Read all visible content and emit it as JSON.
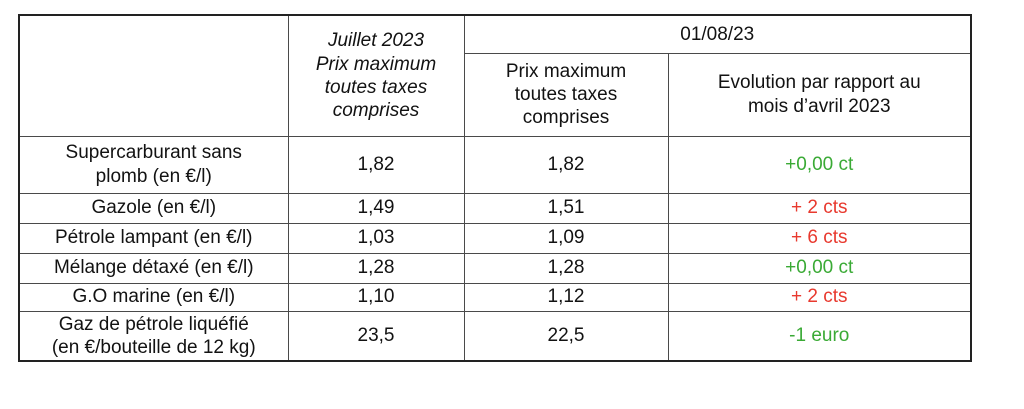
{
  "table": {
    "header": {
      "corner_cell": "",
      "juillet_column": {
        "lines": [
          "Juillet 2023",
          "Prix maximum",
          "toutes taxes",
          "comprises"
        ]
      },
      "aout_group": {
        "title": "01/08/23"
      },
      "price_subcolumn": {
        "lines": [
          "Prix maximum",
          "toutes taxes",
          "comprises"
        ]
      },
      "evolution_subcolumn": {
        "lines": [
          "Evolution par rapport au",
          "mois d’avril 2023"
        ]
      }
    },
    "rows": [
      {
        "label_lines": [
          "Supercarburant sans",
          "plomb (en €/l)"
        ],
        "juillet_price": "1,82",
        "aout_price": "1,82",
        "evolution": "+0,00 ct",
        "evolution_color": "#3aaa35"
      },
      {
        "label_lines": [
          "Gazole (en €/l)"
        ],
        "juillet_price": "1,49",
        "aout_price": "1,51",
        "evolution": "+ 2 cts",
        "evolution_color": "#e8392e"
      },
      {
        "label_lines": [
          "Pétrole lampant (en €/l)"
        ],
        "juillet_price": "1,03",
        "aout_price": "1,09",
        "evolution": "+ 6 cts",
        "evolution_color": "#e8392e"
      },
      {
        "label_lines": [
          "Mélange détaxé (en €/l)"
        ],
        "juillet_price": "1,28",
        "aout_price": "1,28",
        "evolution": "+0,00 ct",
        "evolution_color": "#3aaa35"
      },
      {
        "label_lines": [
          "G.O marine (en €/l)"
        ],
        "juillet_price": "1,10",
        "aout_price": "1,12",
        "evolution": "+ 2 cts",
        "evolution_color": "#e8392e"
      },
      {
        "label_lines": [
          "Gaz de pétrole liquéfié",
          "(en €/bouteille de 12 kg)"
        ],
        "juillet_price": "23,5",
        "aout_price": "22,5",
        "evolution": "-1 euro",
        "evolution_color": "#3aaa35"
      }
    ],
    "colors": {
      "increase": "#e8392e",
      "stable_or_decrease": "#3aaa35",
      "text": "#121212",
      "inner_border": "#4a4a4a",
      "outer_border": "#222222"
    }
  }
}
